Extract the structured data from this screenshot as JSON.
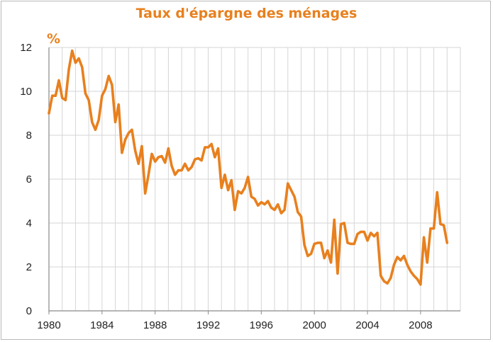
{
  "chart_data": {
    "type": "line",
    "title": "Taux d'épargne des ménages",
    "ylabel": "%",
    "xlabel": "",
    "xlim": [
      1980,
      2011
    ],
    "ylim": [
      0,
      12
    ],
    "x_ticks": [
      "1980",
      "1984",
      "1988",
      "1992",
      "1996",
      "2000",
      "2004",
      "2008"
    ],
    "y_ticks": [
      "0",
      "2",
      "4",
      "6",
      "8",
      "10",
      "12"
    ],
    "grid": true,
    "line_color": "#e8801e",
    "series": [
      {
        "name": "",
        "x": [
          1980.0,
          1980.25,
          1980.5,
          1980.75,
          1981.0,
          1981.25,
          1981.5,
          1981.75,
          1982.0,
          1982.25,
          1982.5,
          1982.75,
          1983.0,
          1983.25,
          1983.5,
          1983.75,
          1984.0,
          1984.25,
          1984.5,
          1984.75,
          1985.0,
          1985.25,
          1985.5,
          1985.75,
          1986.0,
          1986.25,
          1986.5,
          1986.75,
          1987.0,
          1987.25,
          1987.5,
          1987.75,
          1988.0,
          1988.25,
          1988.5,
          1988.75,
          1989.0,
          1989.25,
          1989.5,
          1989.75,
          1990.0,
          1990.25,
          1990.5,
          1990.75,
          1991.0,
          1991.25,
          1991.5,
          1991.75,
          1992.0,
          1992.25,
          1992.5,
          1992.75,
          1993.0,
          1993.25,
          1993.5,
          1993.75,
          1994.0,
          1994.25,
          1994.5,
          1994.75,
          1995.0,
          1995.25,
          1995.5,
          1995.75,
          1996.0,
          1996.25,
          1996.5,
          1996.75,
          1997.0,
          1997.25,
          1997.5,
          1997.75,
          1998.0,
          1998.25,
          1998.5,
          1998.75,
          1999.0,
          1999.25,
          1999.5,
          1999.75,
          2000.0,
          2000.25,
          2000.5,
          2000.75,
          2001.0,
          2001.25,
          2001.5,
          2001.75,
          2002.0,
          2002.25,
          2002.5,
          2002.75,
          2003.0,
          2003.25,
          2003.5,
          2003.75,
          2004.0,
          2004.25,
          2004.5,
          2004.75,
          2005.0,
          2005.25,
          2005.5,
          2005.75,
          2006.0,
          2006.25,
          2006.5,
          2006.75,
          2007.0,
          2007.25,
          2007.5,
          2007.75,
          2008.0,
          2008.25,
          2008.5,
          2008.75,
          2009.0,
          2009.25,
          2009.5,
          2009.75,
          2010.0
        ],
        "values": [
          9.0,
          9.8,
          9.8,
          10.5,
          9.7,
          9.6,
          11.0,
          11.85,
          11.3,
          11.5,
          11.1,
          9.9,
          9.6,
          8.6,
          8.25,
          8.7,
          9.8,
          10.1,
          10.7,
          10.3,
          8.6,
          9.4,
          7.2,
          7.8,
          8.1,
          8.25,
          7.3,
          6.7,
          7.5,
          5.35,
          6.2,
          7.15,
          6.8,
          7.0,
          7.05,
          6.75,
          7.4,
          6.6,
          6.2,
          6.4,
          6.4,
          6.7,
          6.4,
          6.55,
          6.9,
          6.95,
          6.85,
          7.45,
          7.45,
          7.6,
          7.0,
          7.4,
          5.6,
          6.2,
          5.5,
          5.95,
          4.6,
          5.45,
          5.35,
          5.6,
          6.1,
          5.2,
          5.1,
          4.8,
          4.95,
          4.85,
          5.0,
          4.7,
          4.6,
          4.85,
          4.45,
          4.6,
          5.8,
          5.5,
          5.2,
          4.5,
          4.3,
          3.0,
          2.5,
          2.6,
          3.05,
          3.1,
          3.1,
          2.4,
          2.75,
          2.2,
          4.15,
          1.7,
          3.95,
          4.0,
          3.1,
          3.05,
          3.05,
          3.5,
          3.6,
          3.6,
          3.2,
          3.55,
          3.4,
          3.55,
          1.6,
          1.35,
          1.25,
          1.5,
          2.1,
          2.45,
          2.3,
          2.5,
          2.1,
          1.8,
          1.6,
          1.45,
          1.2,
          3.35,
          2.2,
          3.75,
          3.75,
          5.4,
          3.95,
          3.9,
          3.1
        ]
      }
    ]
  }
}
